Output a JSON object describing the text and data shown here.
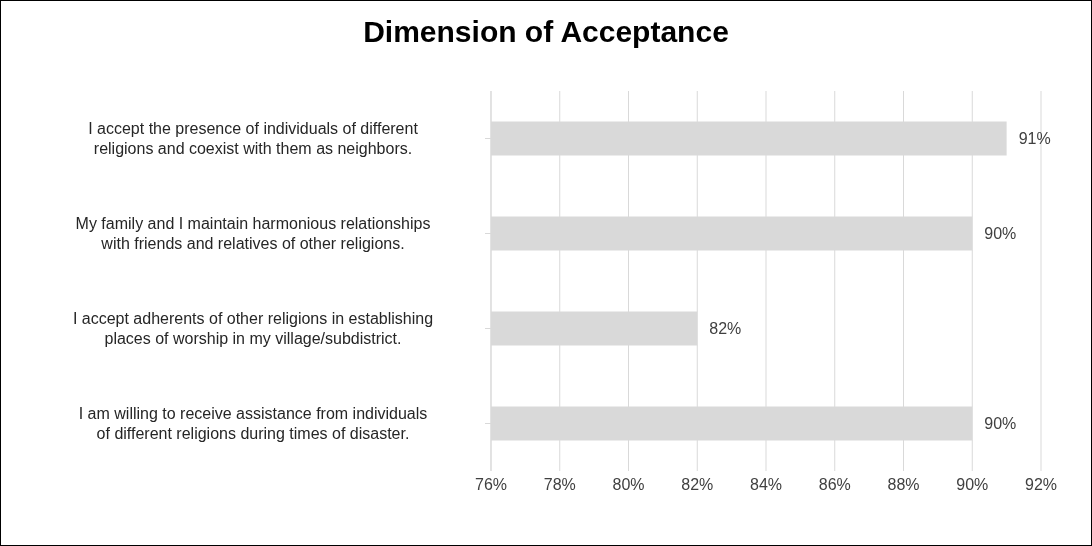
{
  "chart_data": {
    "type": "bar",
    "orientation": "horizontal",
    "title": "Dimension of Acceptance",
    "categories": [
      "I accept the presence of individuals of different religions and coexist with them as neighbors.",
      "My family and I maintain harmonious relationships with friends and relatives of other religions.",
      "I accept adherents of other religions in establishing places of worship in my village/subdistrict.",
      "I am willing to receive assistance from individuals of different religions during times of disaster."
    ],
    "values": [
      91,
      90,
      82,
      90
    ],
    "value_labels": [
      "91%",
      "90%",
      "82%",
      "90%"
    ],
    "color": "#d9d9d9",
    "xlim": [
      76,
      92
    ],
    "xticks": [
      {
        "value": 76,
        "label": "76%"
      },
      {
        "value": 78,
        "label": "78%"
      },
      {
        "value": 80,
        "label": "80%"
      },
      {
        "value": 82,
        "label": "82%"
      },
      {
        "value": 84,
        "label": "84%"
      },
      {
        "value": 86,
        "label": "86%"
      },
      {
        "value": 88,
        "label": "88%"
      },
      {
        "value": 90,
        "label": "90%"
      },
      {
        "value": 92,
        "label": "92%"
      }
    ],
    "grid": "x",
    "legend": false
  }
}
